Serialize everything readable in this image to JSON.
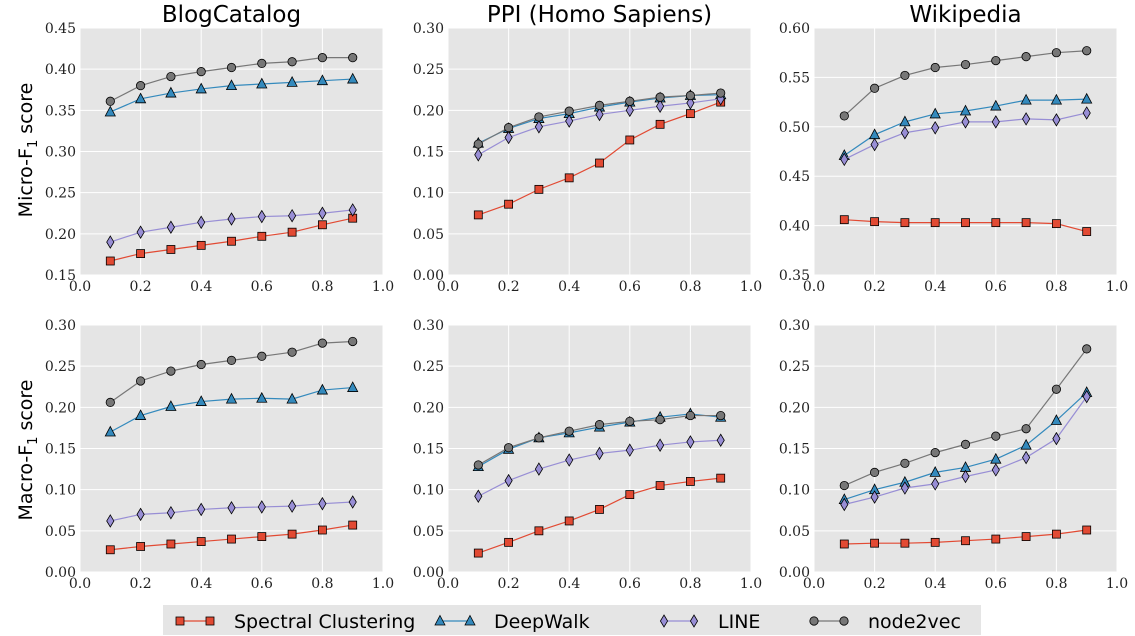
{
  "legend": {
    "items": [
      {
        "label": "Spectral Clustering",
        "marker": "square",
        "color": "#e24a33"
      },
      {
        "label": "DeepWalk",
        "marker": "triangle",
        "color": "#348abd"
      },
      {
        "label": "LINE",
        "marker": "diamond",
        "color": "#988ed5"
      },
      {
        "label": "node2vec",
        "marker": "circle",
        "color": "#777777"
      }
    ]
  },
  "chart_data": [
    {
      "type": "line",
      "title": "BlogCatalog",
      "ylabel": "Micro-F1 score",
      "x": [
        0.1,
        0.2,
        0.3,
        0.4,
        0.5,
        0.6,
        0.7,
        0.8,
        0.9
      ],
      "xlim": [
        0.0,
        1.0
      ],
      "ylim": [
        0.15,
        0.45
      ],
      "xticks": [
        "0.0",
        "0.2",
        "0.4",
        "0.6",
        "0.8",
        "1.0"
      ],
      "yticks": [
        "0.15",
        "0.20",
        "0.25",
        "0.30",
        "0.35",
        "0.40",
        "0.45"
      ],
      "series": [
        {
          "name": "Spectral Clustering",
          "values": [
            0.167,
            0.176,
            0.181,
            0.186,
            0.191,
            0.197,
            0.202,
            0.211,
            0.219
          ]
        },
        {
          "name": "DeepWalk",
          "values": [
            0.348,
            0.364,
            0.371,
            0.376,
            0.38,
            0.382,
            0.384,
            0.386,
            0.388
          ]
        },
        {
          "name": "LINE",
          "values": [
            0.19,
            0.202,
            0.208,
            0.214,
            0.218,
            0.221,
            0.222,
            0.225,
            0.229
          ]
        },
        {
          "name": "node2vec",
          "values": [
            0.361,
            0.38,
            0.391,
            0.397,
            0.402,
            0.407,
            0.409,
            0.414,
            0.414
          ]
        }
      ]
    },
    {
      "type": "line",
      "title": "PPI (Homo Sapiens)",
      "ylabel": "",
      "x": [
        0.1,
        0.2,
        0.3,
        0.4,
        0.5,
        0.6,
        0.7,
        0.8,
        0.9
      ],
      "xlim": [
        0.0,
        1.0
      ],
      "ylim": [
        0.0,
        0.3
      ],
      "xticks": [
        "0.0",
        "0.2",
        "0.4",
        "0.6",
        "0.8",
        "1.0"
      ],
      "yticks": [
        "0.00",
        "0.05",
        "0.10",
        "0.15",
        "0.20",
        "0.25",
        "0.30"
      ],
      "series": [
        {
          "name": "Spectral Clustering",
          "values": [
            0.073,
            0.086,
            0.104,
            0.118,
            0.136,
            0.164,
            0.183,
            0.196,
            0.21
          ]
        },
        {
          "name": "DeepWalk",
          "values": [
            0.16,
            0.178,
            0.19,
            0.196,
            0.204,
            0.21,
            0.215,
            0.218,
            0.219
          ]
        },
        {
          "name": "LINE",
          "values": [
            0.146,
            0.167,
            0.18,
            0.187,
            0.195,
            0.2,
            0.205,
            0.209,
            0.214
          ]
        },
        {
          "name": "node2vec",
          "values": [
            0.159,
            0.179,
            0.192,
            0.199,
            0.206,
            0.211,
            0.216,
            0.218,
            0.221
          ]
        }
      ]
    },
    {
      "type": "line",
      "title": "Wikipedia",
      "ylabel": "",
      "x": [
        0.1,
        0.2,
        0.3,
        0.4,
        0.5,
        0.6,
        0.7,
        0.8,
        0.9
      ],
      "xlim": [
        0.0,
        1.0
      ],
      "ylim": [
        0.35,
        0.6
      ],
      "xticks": [
        "0.0",
        "0.2",
        "0.4",
        "0.6",
        "0.8",
        "1.0"
      ],
      "yticks": [
        "0.35",
        "0.40",
        "0.45",
        "0.50",
        "0.55",
        "0.60"
      ],
      "series": [
        {
          "name": "Spectral Clustering",
          "values": [
            0.406,
            0.404,
            0.403,
            0.403,
            0.403,
            0.403,
            0.403,
            0.402,
            0.394
          ]
        },
        {
          "name": "DeepWalk",
          "values": [
            0.471,
            0.492,
            0.505,
            0.513,
            0.516,
            0.521,
            0.527,
            0.527,
            0.528
          ]
        },
        {
          "name": "LINE",
          "values": [
            0.467,
            0.482,
            0.494,
            0.499,
            0.505,
            0.505,
            0.508,
            0.507,
            0.514
          ]
        },
        {
          "name": "node2vec",
          "values": [
            0.511,
            0.539,
            0.552,
            0.56,
            0.563,
            0.567,
            0.571,
            0.575,
            0.577
          ]
        }
      ]
    },
    {
      "type": "line",
      "title": "",
      "ylabel": "Macro-F1 score",
      "x": [
        0.1,
        0.2,
        0.3,
        0.4,
        0.5,
        0.6,
        0.7,
        0.8,
        0.9
      ],
      "xlim": [
        0.0,
        1.0
      ],
      "ylim": [
        0.0,
        0.3
      ],
      "xticks": [
        "0.0",
        "0.2",
        "0.4",
        "0.6",
        "0.8",
        "1.0"
      ],
      "yticks": [
        "0.00",
        "0.05",
        "0.10",
        "0.15",
        "0.20",
        "0.25",
        "0.30"
      ],
      "series": [
        {
          "name": "Spectral Clustering",
          "values": [
            0.027,
            0.031,
            0.034,
            0.037,
            0.04,
            0.043,
            0.046,
            0.051,
            0.057
          ]
        },
        {
          "name": "DeepWalk",
          "values": [
            0.17,
            0.19,
            0.201,
            0.207,
            0.21,
            0.211,
            0.21,
            0.221,
            0.224
          ]
        },
        {
          "name": "LINE",
          "values": [
            0.062,
            0.07,
            0.072,
            0.076,
            0.078,
            0.079,
            0.08,
            0.083,
            0.085
          ]
        },
        {
          "name": "node2vec",
          "values": [
            0.206,
            0.232,
            0.244,
            0.252,
            0.257,
            0.262,
            0.267,
            0.278,
            0.28
          ]
        }
      ]
    },
    {
      "type": "line",
      "title": "",
      "ylabel": "",
      "x": [
        0.1,
        0.2,
        0.3,
        0.4,
        0.5,
        0.6,
        0.7,
        0.8,
        0.9
      ],
      "xlim": [
        0.0,
        1.0
      ],
      "ylim": [
        0.0,
        0.3
      ],
      "xticks": [
        "0.0",
        "0.2",
        "0.4",
        "0.6",
        "0.8",
        "1.0"
      ],
      "yticks": [
        "0.00",
        "0.05",
        "0.10",
        "0.15",
        "0.20",
        "0.25",
        "0.30"
      ],
      "series": [
        {
          "name": "Spectral Clustering",
          "values": [
            0.023,
            0.036,
            0.05,
            0.062,
            0.076,
            0.094,
            0.105,
            0.11,
            0.114
          ]
        },
        {
          "name": "DeepWalk",
          "values": [
            0.128,
            0.149,
            0.163,
            0.169,
            0.176,
            0.182,
            0.188,
            0.192,
            0.188
          ]
        },
        {
          "name": "LINE",
          "values": [
            0.092,
            0.111,
            0.125,
            0.136,
            0.144,
            0.148,
            0.154,
            0.158,
            0.16
          ]
        },
        {
          "name": "node2vec",
          "values": [
            0.13,
            0.151,
            0.163,
            0.171,
            0.179,
            0.183,
            0.185,
            0.19,
            0.19
          ]
        }
      ]
    },
    {
      "type": "line",
      "title": "",
      "ylabel": "",
      "x": [
        0.1,
        0.2,
        0.3,
        0.4,
        0.5,
        0.6,
        0.7,
        0.8,
        0.9
      ],
      "xlim": [
        0.0,
        1.0
      ],
      "ylim": [
        0.0,
        0.3
      ],
      "xticks": [
        "0.0",
        "0.2",
        "0.4",
        "0.6",
        "0.8",
        "1.0"
      ],
      "yticks": [
        "0.00",
        "0.05",
        "0.10",
        "0.15",
        "0.20",
        "0.25",
        "0.30"
      ],
      "series": [
        {
          "name": "Spectral Clustering",
          "values": [
            0.034,
            0.035,
            0.035,
            0.036,
            0.038,
            0.04,
            0.043,
            0.046,
            0.051
          ]
        },
        {
          "name": "DeepWalk",
          "values": [
            0.088,
            0.1,
            0.109,
            0.121,
            0.127,
            0.137,
            0.154,
            0.184,
            0.218
          ]
        },
        {
          "name": "LINE",
          "values": [
            0.082,
            0.091,
            0.102,
            0.107,
            0.116,
            0.124,
            0.139,
            0.162,
            0.213
          ]
        },
        {
          "name": "node2vec",
          "values": [
            0.105,
            0.121,
            0.132,
            0.145,
            0.155,
            0.165,
            0.174,
            0.222,
            0.271
          ]
        }
      ]
    }
  ]
}
